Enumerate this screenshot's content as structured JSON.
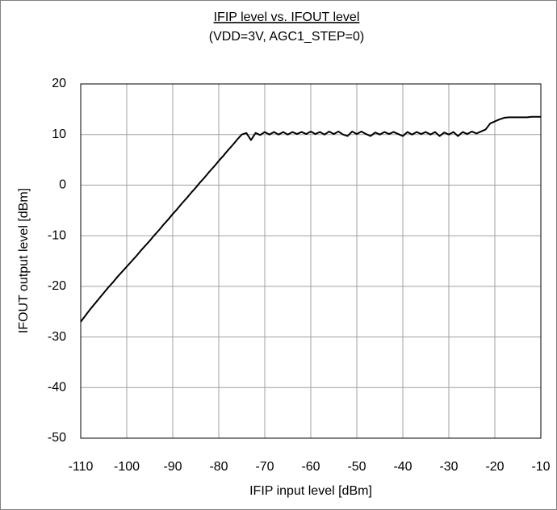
{
  "chart_data": {
    "type": "line",
    "title": "IFIP level vs. IFOUT level",
    "subtitle": "(VDD=3V, AGC1_STEP=0)",
    "x_label": "IFIP input level [dBm]",
    "y_label": "IFOUT output level [dBm]",
    "color": "#000000",
    "grid": true,
    "xlim": [
      -110,
      -10
    ],
    "ylim": [
      -50,
      20
    ],
    "xticks": [
      -110,
      -100,
      -90,
      -80,
      -70,
      -60,
      -50,
      -40,
      -30,
      -20,
      -10
    ],
    "yticks": [
      -50,
      -40,
      -30,
      -20,
      -10,
      0,
      10,
      20
    ],
    "x": [
      -110,
      -109,
      -108,
      -107,
      -106,
      -105,
      -104,
      -103,
      -102,
      -101,
      -100,
      -99,
      -98,
      -97,
      -96,
      -95,
      -94,
      -93,
      -92,
      -91,
      -90,
      -89,
      -88,
      -87,
      -86,
      -85,
      -84,
      -83,
      -82,
      -81,
      -80,
      -79,
      -78,
      -77,
      -76,
      -75,
      -74,
      -73,
      -72,
      -71,
      -70,
      -69,
      -68,
      -67,
      -66,
      -65,
      -64,
      -63,
      -62,
      -61,
      -60,
      -59,
      -58,
      -57,
      -56,
      -55,
      -54,
      -53,
      -52,
      -51,
      -50,
      -49,
      -48,
      -47,
      -46,
      -45,
      -44,
      -43,
      -42,
      -41,
      -40,
      -39,
      -38,
      -37,
      -36,
      -35,
      -34,
      -33,
      -32,
      -31,
      -30,
      -29,
      -28,
      -27,
      -26,
      -25,
      -24,
      -23,
      -22,
      -21,
      -20,
      -19,
      -18,
      -17,
      -16,
      -15,
      -14,
      -13,
      -12,
      -11,
      -10
    ],
    "values": [
      -27,
      -25.8,
      -24.6,
      -23.5,
      -22.4,
      -21.3,
      -20.2,
      -19.2,
      -18.1,
      -17.1,
      -16.1,
      -15.1,
      -14.1,
      -13.0,
      -12.0,
      -11.0,
      -9.9,
      -8.9,
      -7.8,
      -6.8,
      -5.7,
      -4.7,
      -3.6,
      -2.6,
      -1.5,
      -0.5,
      0.6,
      1.6,
      2.7,
      3.7,
      4.8,
      5.8,
      6.9,
      7.9,
      9.0,
      10.0,
      10.3,
      8.9,
      10.3,
      9.9,
      10.5,
      10.0,
      10.5,
      10.0,
      10.5,
      10.0,
      10.5,
      10.1,
      10.5,
      10.1,
      10.6,
      10.1,
      10.5,
      10.0,
      10.6,
      10.1,
      10.6,
      10.0,
      9.7,
      10.6,
      10.1,
      10.6,
      10.1,
      9.7,
      10.4,
      10.0,
      10.5,
      10.1,
      10.5,
      10.1,
      9.7,
      10.5,
      10.0,
      10.5,
      10.1,
      10.5,
      10.0,
      10.5,
      9.7,
      10.4,
      10.0,
      10.5,
      9.7,
      10.5,
      10.1,
      10.6,
      10.2,
      10.6,
      11.0,
      12.2,
      12.6,
      13.0,
      13.3,
      13.4,
      13.4,
      13.4,
      13.4,
      13.4,
      13.5,
      13.5,
      13.5
    ]
  }
}
